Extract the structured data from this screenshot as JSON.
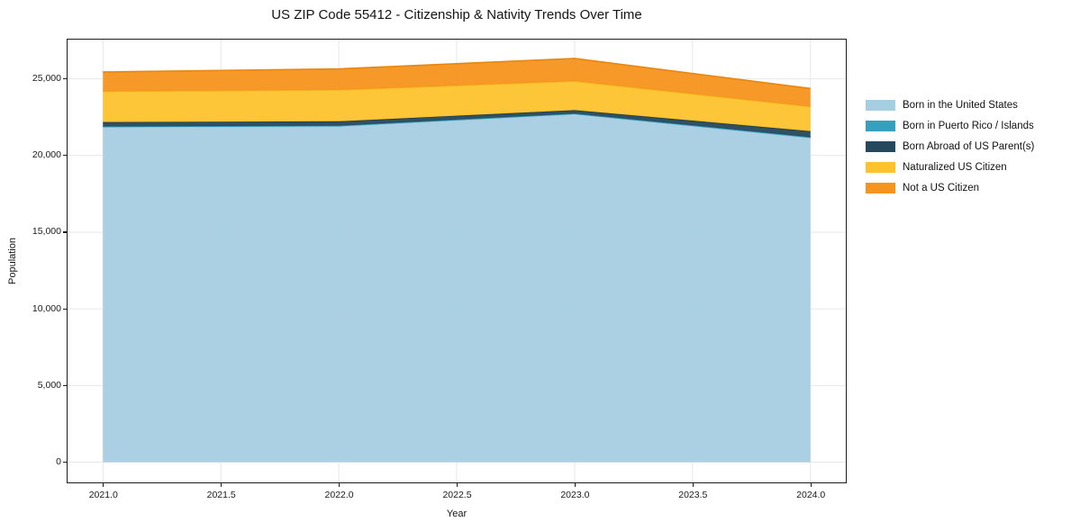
{
  "chart_data": {
    "type": "area",
    "stacked": true,
    "title": "US ZIP Code 55412 - Citizenship & Nativity Trends Over Time",
    "xlabel": "Year",
    "ylabel": "Population",
    "x": [
      2021,
      2022,
      2023,
      2024
    ],
    "series": [
      {
        "name": "Born in the United States",
        "color": "#a6cee3",
        "edge": "#97c4dc",
        "values": [
          21850,
          21900,
          22700,
          21150
        ]
      },
      {
        "name": "Born in Puerto Rico / Islands",
        "color": "#35a0be",
        "edge": "#2b90ad",
        "values": [
          50,
          50,
          40,
          50
        ]
      },
      {
        "name": "Born Abroad of US Parent(s)",
        "color": "#25485c",
        "edge": "#1c3a4b",
        "values": [
          280,
          280,
          220,
          390
        ]
      },
      {
        "name": "Naturalized US Citizen",
        "color": "#fcc32d",
        "edge": "#f2b618",
        "values": [
          2000,
          2050,
          1890,
          1600
        ]
      },
      {
        "name": "Not a US Citizen",
        "color": "#f7941e",
        "edge": "#e8860f",
        "values": [
          1270,
          1370,
          1480,
          1180
        ]
      }
    ],
    "totals": [
      25450,
      25650,
      26330,
      24370
    ],
    "xlim": [
      2020.85,
      2024.15
    ],
    "ylim": [
      -1320,
      27560
    ],
    "x_tick_values": [
      2021.0,
      2021.5,
      2022.0,
      2022.5,
      2023.0,
      2023.5,
      2024.0
    ],
    "x_tick_labels": [
      "2021.0",
      "2021.5",
      "2022.0",
      "2022.5",
      "2023.0",
      "2023.5",
      "2024.0"
    ],
    "y_tick_values": [
      0,
      5000,
      10000,
      15000,
      20000,
      25000
    ],
    "y_tick_labels": [
      "0",
      "5,000",
      "10,000",
      "15,000",
      "20,000",
      "25,000"
    ],
    "grid": true,
    "grid_color": "#e7e7e7",
    "spine_color": "#1c1c1c",
    "legend_position": "right",
    "legend_frame": false
  }
}
